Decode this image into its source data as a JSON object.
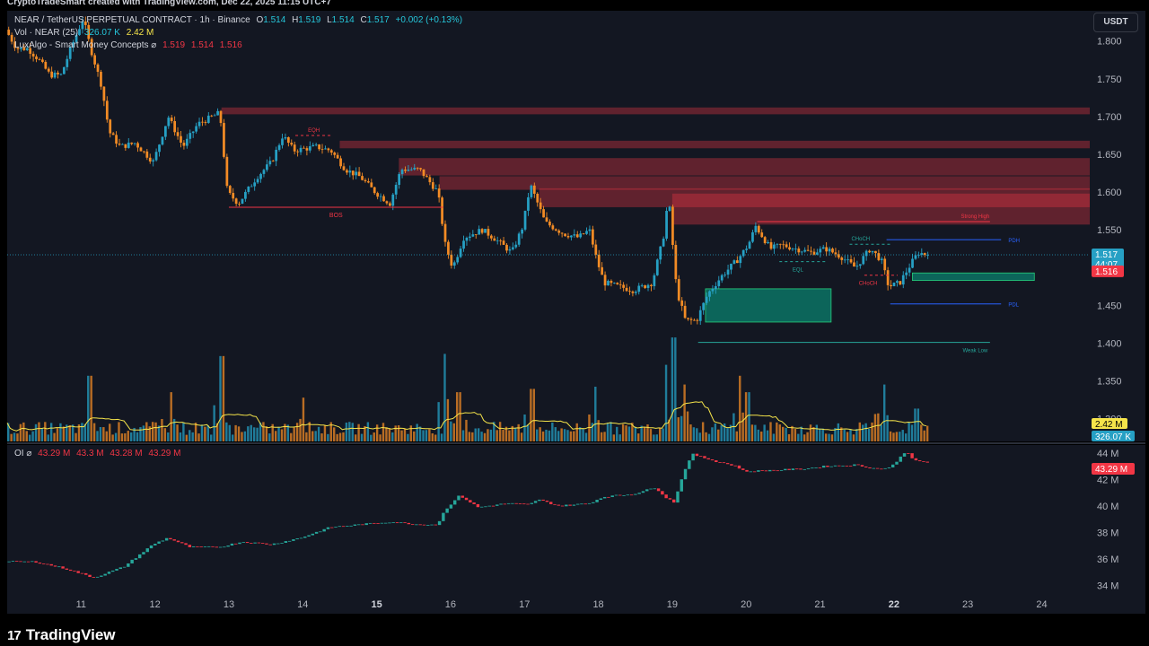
{
  "watermark": "CryptoTradeSmart created with TradingView.com, Dec 22, 2025 11:15 UTC+7",
  "brand": {
    "mark": "17",
    "name": "TradingView"
  },
  "toolbar": {
    "unit_button": "USDT"
  },
  "legend": {
    "symbol": "NEAR / TetherUS PERPETUAL CONTRACT · 1h · Binance",
    "o_label": "O",
    "o": "1.514",
    "h_label": "H",
    "h": "1.519",
    "l_label": "L",
    "l": "1.514",
    "c_label": "C",
    "c": "1.517",
    "change": "+0.002 (+0.13%)",
    "vol_label": "Vol · NEAR (25)",
    "vol_value": "326.07 K",
    "vol_ma": "2.42 M",
    "smc_label": "LuxAlgo - Smart Money Concepts ⌀",
    "smc_v1": "1.519",
    "smc_v2": "1.514",
    "smc_v3": "1.516",
    "oi_label": "OI ⌀",
    "oi_o": "43.29 M",
    "oi_h": "43.3 M",
    "oi_l": "43.28 M",
    "oi_c": "43.29 M"
  },
  "chart_data": {
    "type": "candlestick",
    "colors": {
      "up": "#26a0c4",
      "down": "#f28b25",
      "oi_up": "#26a69a",
      "oi_down": "#f23645",
      "vol_ma": "#f5e44a",
      "bear_zone": "#f23645",
      "bull_zone": "#089981",
      "text": "#b2b5be"
    },
    "x_ticks": [
      {
        "label": "11",
        "x": 11
      },
      {
        "label": "12",
        "x": 12
      },
      {
        "label": "13",
        "x": 13
      },
      {
        "label": "14",
        "x": 14
      },
      {
        "label": "15",
        "x": 15,
        "bold": true
      },
      {
        "label": "16",
        "x": 16
      },
      {
        "label": "17",
        "x": 17
      },
      {
        "label": "18",
        "x": 18
      },
      {
        "label": "19",
        "x": 19
      },
      {
        "label": "20",
        "x": 20
      },
      {
        "label": "21",
        "x": 21
      },
      {
        "label": "22",
        "x": 22,
        "bold": true
      },
      {
        "label": "23",
        "x": 23
      },
      {
        "label": "24",
        "x": 24
      }
    ],
    "price_ticks": [
      "1.800",
      "1.750",
      "1.700",
      "1.650",
      "1.600",
      "1.550",
      "1.500",
      "1.450",
      "1.400",
      "1.350",
      "1.300"
    ],
    "price_range": [
      1.27,
      1.84
    ],
    "oi_ticks": [
      "44 M",
      "42 M",
      "40 M",
      "38 M",
      "36 M",
      "34 M"
    ],
    "oi_range": [
      33.5,
      44.6
    ],
    "x_range": [
      10.0,
      24.65
    ],
    "last_price": {
      "value": 1.517,
      "label": "1.517",
      "countdown": "44:07"
    },
    "smc_price": {
      "value": 1.516,
      "label": "1.516"
    },
    "vol_labels": {
      "ma": "2.42 M",
      "vol": "326.07 K"
    },
    "oi_label": "43.29 M",
    "price_path": [
      [
        10.0,
        1.815
      ],
      [
        10.15,
        1.79
      ],
      [
        10.3,
        1.79
      ],
      [
        10.45,
        1.775
      ],
      [
        10.6,
        1.755
      ],
      [
        10.75,
        1.755
      ],
      [
        10.9,
        1.795
      ],
      [
        11.05,
        1.83
      ],
      [
        11.15,
        1.79
      ],
      [
        11.3,
        1.74
      ],
      [
        11.4,
        1.68
      ],
      [
        11.55,
        1.66
      ],
      [
        11.75,
        1.665
      ],
      [
        12.0,
        1.64
      ],
      [
        12.2,
        1.7
      ],
      [
        12.4,
        1.66
      ],
      [
        12.6,
        1.69
      ],
      [
        12.9,
        1.705
      ],
      [
        13.0,
        1.6
      ],
      [
        13.15,
        1.585
      ],
      [
        13.4,
        1.62
      ],
      [
        13.6,
        1.64
      ],
      [
        13.75,
        1.675
      ],
      [
        13.9,
        1.655
      ],
      [
        14.2,
        1.66
      ],
      [
        14.4,
        1.655
      ],
      [
        14.6,
        1.63
      ],
      [
        14.8,
        1.62
      ],
      [
        15.0,
        1.6
      ],
      [
        15.2,
        1.585
      ],
      [
        15.35,
        1.63
      ],
      [
        15.6,
        1.63
      ],
      [
        15.85,
        1.6
      ],
      [
        15.95,
        1.53
      ],
      [
        16.05,
        1.5
      ],
      [
        16.2,
        1.54
      ],
      [
        16.45,
        1.55
      ],
      [
        16.6,
        1.54
      ],
      [
        16.85,
        1.52
      ],
      [
        17.0,
        1.555
      ],
      [
        17.1,
        1.61
      ],
      [
        17.3,
        1.56
      ],
      [
        17.55,
        1.545
      ],
      [
        17.75,
        1.54
      ],
      [
        17.9,
        1.55
      ],
      [
        18.0,
        1.51
      ],
      [
        18.1,
        1.48
      ],
      [
        18.3,
        1.475
      ],
      [
        18.5,
        1.47
      ],
      [
        18.75,
        1.48
      ],
      [
        18.9,
        1.54
      ],
      [
        18.97,
        1.595
      ],
      [
        19.08,
        1.47
      ],
      [
        19.2,
        1.43
      ],
      [
        19.35,
        1.43
      ],
      [
        19.5,
        1.465
      ],
      [
        19.7,
        1.49
      ],
      [
        19.9,
        1.51
      ],
      [
        20.05,
        1.53
      ],
      [
        20.15,
        1.555
      ],
      [
        20.35,
        1.525
      ],
      [
        20.5,
        1.53
      ],
      [
        20.7,
        1.525
      ],
      [
        20.9,
        1.52
      ],
      [
        21.1,
        1.525
      ],
      [
        21.3,
        1.515
      ],
      [
        21.5,
        1.5
      ],
      [
        21.7,
        1.525
      ],
      [
        21.85,
        1.51
      ],
      [
        21.95,
        1.475
      ],
      [
        22.1,
        1.48
      ],
      [
        22.25,
        1.505
      ],
      [
        22.35,
        1.52
      ],
      [
        22.48,
        1.517
      ]
    ],
    "oi_path": [
      [
        10.0,
        35.8
      ],
      [
        10.4,
        35.8
      ],
      [
        10.8,
        35.3
      ],
      [
        11.2,
        34.6
      ],
      [
        11.6,
        35.4
      ],
      [
        12.0,
        37.1
      ],
      [
        12.2,
        37.6
      ],
      [
        12.5,
        36.9
      ],
      [
        12.9,
        36.9
      ],
      [
        13.2,
        37.3
      ],
      [
        13.6,
        37.1
      ],
      [
        14.0,
        37.6
      ],
      [
        14.4,
        38.4
      ],
      [
        14.8,
        38.6
      ],
      [
        15.2,
        38.8
      ],
      [
        15.6,
        38.6
      ],
      [
        15.85,
        38.6
      ],
      [
        15.95,
        39.7
      ],
      [
        16.15,
        40.8
      ],
      [
        16.4,
        39.9
      ],
      [
        16.8,
        40.2
      ],
      [
        17.1,
        40.1
      ],
      [
        17.2,
        40.5
      ],
      [
        17.5,
        40.0
      ],
      [
        17.9,
        40.2
      ],
      [
        18.1,
        40.7
      ],
      [
        18.5,
        40.9
      ],
      [
        18.8,
        41.4
      ],
      [
        18.95,
        40.6
      ],
      [
        19.05,
        40.3
      ],
      [
        19.2,
        42.8
      ],
      [
        19.3,
        43.9
      ],
      [
        19.6,
        43.4
      ],
      [
        19.9,
        43.0
      ],
      [
        20.0,
        42.6
      ],
      [
        20.4,
        42.7
      ],
      [
        20.8,
        42.8
      ],
      [
        21.1,
        43.0
      ],
      [
        21.5,
        43.1
      ],
      [
        21.8,
        42.8
      ],
      [
        21.98,
        42.9
      ],
      [
        22.1,
        43.6
      ],
      [
        22.2,
        44.2
      ],
      [
        22.3,
        43.4
      ],
      [
        22.48,
        43.29
      ]
    ],
    "volume_scale": "relative_0_to_1",
    "volume_spikes": [
      [
        11.1,
        0.6
      ],
      [
        12.2,
        0.45
      ],
      [
        12.9,
        0.78
      ],
      [
        14.0,
        0.4
      ],
      [
        15.9,
        0.8
      ],
      [
        16.1,
        0.45
      ],
      [
        17.1,
        0.48
      ],
      [
        17.95,
        0.5
      ],
      [
        18.9,
        0.7
      ],
      [
        19.0,
        0.95
      ],
      [
        19.15,
        0.52
      ],
      [
        19.9,
        0.6
      ],
      [
        20.0,
        0.45
      ],
      [
        21.85,
        0.52
      ],
      [
        22.3,
        0.3
      ]
    ],
    "zones": [
      {
        "kind": "bear",
        "x0": 12.9,
        "y0": 1.703,
        "y1": 1.712
      },
      {
        "kind": "bear",
        "x0": 14.5,
        "y0": 1.658,
        "y1": 1.668
      },
      {
        "kind": "bear",
        "x0": 15.3,
        "y0": 1.622,
        "y1": 1.645
      },
      {
        "kind": "bear",
        "x0": 15.85,
        "y0": 1.603,
        "y1": 1.621
      },
      {
        "kind": "bear",
        "x0": 17.2,
        "y0": 1.58,
        "y1": 1.605
      },
      {
        "kind": "bear",
        "x0": 19.0,
        "y0": 1.557,
        "y1": 1.598
      },
      {
        "kind": "bull",
        "x0": 19.45,
        "x1": 21.15,
        "y0": 1.428,
        "y1": 1.472
      },
      {
        "kind": "bull",
        "x0": 22.25,
        "x1": 23.9,
        "y0": 1.483,
        "y1": 1.493
      }
    ],
    "levels": [
      {
        "label": "BOS",
        "x0": 13.0,
        "x1": 15.9,
        "y": 1.58,
        "color": "#f23645",
        "label_x": 14.45,
        "label_pos": "below"
      },
      {
        "label": "EQH",
        "x0": 13.9,
        "x1": 14.4,
        "y": 1.675,
        "color": "#f23645",
        "label_x": 14.15,
        "label_pos": "above",
        "dashed": true
      },
      {
        "label": "Strong High",
        "x0": 20.15,
        "x1": 23.3,
        "y": 1.561,
        "color": "#f23645",
        "label_x": 23.1,
        "label_pos": "above"
      },
      {
        "label": "PDH",
        "x0": 21.9,
        "x1": 23.45,
        "y": 1.537,
        "color": "#2962ff",
        "label_x": 23.5,
        "label_pos": "right"
      },
      {
        "label": "CHoCH",
        "x0": 21.4,
        "x1": 21.95,
        "y": 1.531,
        "color": "#26a69a",
        "label_x": 21.55,
        "label_pos": "above",
        "dashed": true
      },
      {
        "label": "EQL",
        "x0": 20.45,
        "x1": 21.1,
        "y": 1.508,
        "color": "#26a69a",
        "label_x": 20.7,
        "label_pos": "below",
        "dashed": true
      },
      {
        "label": "CHoCH",
        "x0": 21.6,
        "x1": 22.05,
        "y": 1.49,
        "color": "#f23645",
        "label_x": 21.65,
        "label_pos": "below",
        "dashed": true
      },
      {
        "label": "PDL",
        "x0": 21.95,
        "x1": 23.45,
        "y": 1.452,
        "color": "#2962ff",
        "label_x": 23.5,
        "label_pos": "right"
      },
      {
        "label": "Weak Low",
        "x0": 19.35,
        "x1": 23.3,
        "y": 1.401,
        "color": "#26a69a",
        "label_x": 23.1,
        "label_pos": "below"
      }
    ]
  }
}
